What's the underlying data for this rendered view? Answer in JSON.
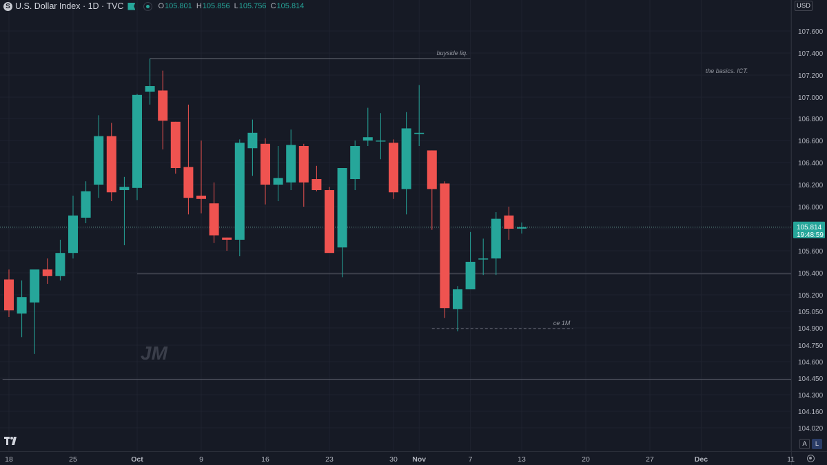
{
  "header": {
    "symbol_icon": "S",
    "title": "U.S. Dollar Index · 1D · TVC",
    "ohlc": {
      "o_label": "O",
      "o": "105.801",
      "h_label": "H",
      "h": "105.856",
      "l_label": "L",
      "l": "105.756",
      "c_label": "C",
      "c": "105.814"
    }
  },
  "currency_button": "USD",
  "corner_buttons": {
    "auto": "A",
    "log": "L"
  },
  "colors": {
    "up": "#26A69A",
    "down": "#EF5350",
    "background": "#161A25",
    "price_badge": "#26A69A",
    "text": "#B2B5BE"
  },
  "price_badge": {
    "price": "105.814",
    "countdown": "19:48:59"
  },
  "chart_data": {
    "type": "candlestick",
    "title": "U.S. Dollar Index · 1D · TVC",
    "y_range": [
      104.02,
      107.6
    ],
    "y_ticks": [
      "107.600",
      "107.400",
      "107.200",
      "107.000",
      "106.800",
      "106.600",
      "106.400",
      "106.200",
      "106.000",
      "105.800",
      "105.600",
      "105.400",
      "105.200",
      "105.050",
      "104.900",
      "104.750",
      "104.600",
      "104.450",
      "104.300",
      "104.160",
      "104.020"
    ],
    "x_ticks": [
      {
        "label": "18",
        "day": 0
      },
      {
        "label": "25",
        "day": 5
      },
      {
        "label": "Oct",
        "day": 10
      },
      {
        "label": "9",
        "day": 15
      },
      {
        "label": "16",
        "day": 20
      },
      {
        "label": "23",
        "day": 25
      },
      {
        "label": "30",
        "day": 30
      },
      {
        "label": "Nov",
        "day": 32
      },
      {
        "label": "7",
        "day": 36
      },
      {
        "label": "13",
        "day": 40
      },
      {
        "label": "20",
        "day": 45
      },
      {
        "label": "27",
        "day": 50
      },
      {
        "label": "Dec",
        "day": 54
      },
      {
        "label": "11",
        "day": 61
      }
    ],
    "candles": [
      {
        "day": 0,
        "o": 105.34,
        "h": 105.43,
        "l": 105.0,
        "c": 105.06
      },
      {
        "day": 1,
        "o": 105.03,
        "h": 105.33,
        "l": 104.82,
        "c": 105.18
      },
      {
        "day": 2,
        "o": 105.13,
        "h": 105.42,
        "l": 104.67,
        "c": 105.43
      },
      {
        "day": 3,
        "o": 105.43,
        "h": 105.53,
        "l": 105.3,
        "c": 105.37
      },
      {
        "day": 4,
        "o": 105.37,
        "h": 105.7,
        "l": 105.33,
        "c": 105.58
      },
      {
        "day": 5,
        "o": 105.58,
        "h": 106.1,
        "l": 105.53,
        "c": 105.92
      },
      {
        "day": 6,
        "o": 105.9,
        "h": 106.23,
        "l": 105.85,
        "c": 106.14
      },
      {
        "day": 7,
        "o": 106.2,
        "h": 106.83,
        "l": 106.08,
        "c": 106.64
      },
      {
        "day": 8,
        "o": 106.64,
        "h": 106.76,
        "l": 106.05,
        "c": 106.13
      },
      {
        "day": 9,
        "o": 106.15,
        "h": 106.27,
        "l": 105.65,
        "c": 106.18
      },
      {
        "day": 10,
        "o": 106.17,
        "h": 107.03,
        "l": 106.06,
        "c": 107.02
      },
      {
        "day": 11,
        "o": 107.05,
        "h": 107.35,
        "l": 106.93,
        "c": 107.1
      },
      {
        "day": 12,
        "o": 107.06,
        "h": 107.24,
        "l": 106.52,
        "c": 106.78
      },
      {
        "day": 13,
        "o": 106.77,
        "h": 106.77,
        "l": 106.3,
        "c": 106.35
      },
      {
        "day": 14,
        "o": 106.36,
        "h": 106.93,
        "l": 105.93,
        "c": 106.08
      },
      {
        "day": 15,
        "o": 106.1,
        "h": 106.6,
        "l": 105.94,
        "c": 106.07
      },
      {
        "day": 16,
        "o": 106.03,
        "h": 106.22,
        "l": 105.67,
        "c": 105.74
      },
      {
        "day": 17,
        "o": 105.72,
        "h": 105.72,
        "l": 105.6,
        "c": 105.7
      },
      {
        "day": 18,
        "o": 105.7,
        "h": 106.61,
        "l": 105.55,
        "c": 106.58
      },
      {
        "day": 19,
        "o": 106.53,
        "h": 106.79,
        "l": 106.28,
        "c": 106.67
      },
      {
        "day": 20,
        "o": 106.57,
        "h": 106.62,
        "l": 106.02,
        "c": 106.2
      },
      {
        "day": 21,
        "o": 106.2,
        "h": 106.55,
        "l": 106.05,
        "c": 106.26
      },
      {
        "day": 22,
        "o": 106.22,
        "h": 106.7,
        "l": 106.15,
        "c": 106.56
      },
      {
        "day": 23,
        "o": 106.55,
        "h": 106.57,
        "l": 106.0,
        "c": 106.22
      },
      {
        "day": 24,
        "o": 106.25,
        "h": 106.37,
        "l": 106.14,
        "c": 106.15
      },
      {
        "day": 25,
        "o": 106.15,
        "h": 106.18,
        "l": 105.6,
        "c": 105.58
      },
      {
        "day": 26,
        "o": 105.63,
        "h": 106.33,
        "l": 105.36,
        "c": 106.35
      },
      {
        "day": 27,
        "o": 106.25,
        "h": 106.6,
        "l": 106.15,
        "c": 106.55
      },
      {
        "day": 28,
        "o": 106.6,
        "h": 106.9,
        "l": 106.55,
        "c": 106.63
      },
      {
        "day": 29,
        "o": 106.6,
        "h": 106.85,
        "l": 106.43,
        "c": 106.6
      },
      {
        "day": 30,
        "o": 106.58,
        "h": 106.61,
        "l": 106.07,
        "c": 106.13
      },
      {
        "day": 31,
        "o": 106.16,
        "h": 106.86,
        "l": 105.93,
        "c": 106.71
      },
      {
        "day": 32,
        "o": 106.66,
        "h": 107.11,
        "l": 106.55,
        "c": 106.67
      },
      {
        "day": 33,
        "o": 106.51,
        "h": 106.51,
        "l": 105.79,
        "c": 106.16
      },
      {
        "day": 34,
        "o": 106.21,
        "h": 106.23,
        "l": 104.99,
        "c": 105.08
      },
      {
        "day": 35,
        "o": 105.07,
        "h": 105.28,
        "l": 104.87,
        "c": 105.25
      },
      {
        "day": 36,
        "o": 105.25,
        "h": 105.77,
        "l": 105.25,
        "c": 105.5
      },
      {
        "day": 37,
        "o": 105.53,
        "h": 105.71,
        "l": 105.38,
        "c": 105.53
      },
      {
        "day": 38,
        "o": 105.53,
        "h": 105.95,
        "l": 105.38,
        "c": 105.89
      },
      {
        "day": 39,
        "o": 105.92,
        "h": 106.0,
        "l": 105.7,
        "c": 105.8
      },
      {
        "day": 40,
        "o": 105.801,
        "h": 105.856,
        "l": 105.756,
        "c": 105.814
      }
    ],
    "annotations": [
      {
        "text": "buyside liq.",
        "y": 107.35,
        "x_from_day": 11,
        "x_to_day": 36
      },
      {
        "text": "the basics. ICT.",
        "x_day": 56,
        "y": 107.23
      },
      {
        "text": "ce 1M",
        "y": 104.895,
        "x_from_day": 33,
        "x_to_day": 44,
        "dashed": true
      }
    ],
    "levels": [
      {
        "y": 105.39,
        "x_from_day": 10
      },
      {
        "y": 104.44,
        "x_from_day": -0.5
      }
    ],
    "watermark": "JM",
    "current_price": 105.814,
    "grid": true
  }
}
